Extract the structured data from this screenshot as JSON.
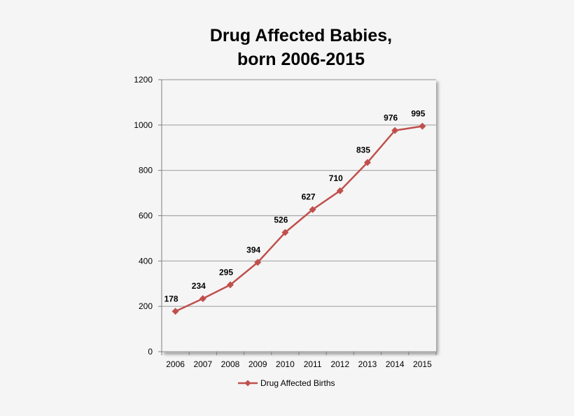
{
  "chart_data": {
    "type": "line",
    "title": [
      "Drug Affected Babies,",
      "born 2006-2015"
    ],
    "xlabel": "",
    "ylabel": "",
    "categories": [
      "2006",
      "2007",
      "2008",
      "2009",
      "2010",
      "2011",
      "2012",
      "2013",
      "2014",
      "2015"
    ],
    "series": [
      {
        "name": "Drug Affected Births",
        "color": "#c0504d",
        "marker": "diamond",
        "values": [
          178,
          234,
          295,
          394,
          526,
          627,
          710,
          835,
          976,
          995
        ],
        "labels": [
          "178",
          "234",
          "295",
          "394",
          "526",
          "627",
          "710",
          "835",
          "976",
          "995"
        ]
      }
    ],
    "ylim": [
      0,
      1200
    ],
    "yticks": [
      0,
      200,
      400,
      600,
      800,
      1000,
      1200
    ],
    "grid": true,
    "legend_position": "bottom",
    "colors": {
      "plot_background": "#f5f5f5",
      "gridline": "#a6a6a6",
      "axis": "#808080"
    }
  }
}
